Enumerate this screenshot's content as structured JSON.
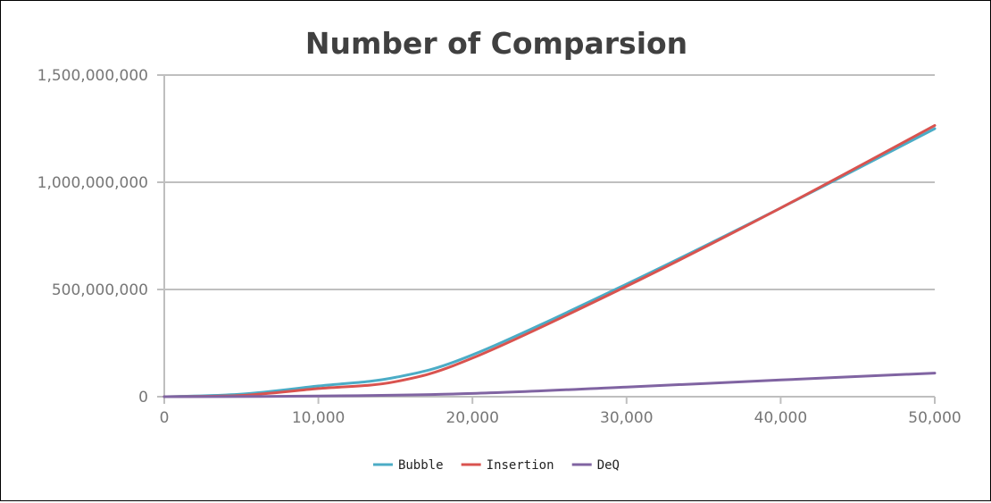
{
  "chart_data": {
    "type": "line",
    "title": "Number of Comparsion",
    "xlabel": "",
    "ylabel": "",
    "xlim": [
      0,
      50000
    ],
    "ylim": [
      0,
      1500000000
    ],
    "x_ticks": [
      0,
      10000,
      20000,
      30000,
      40000,
      50000
    ],
    "x_tick_labels": [
      "0",
      "10,000",
      "20,000",
      "30,000",
      "40,000",
      "50,000"
    ],
    "y_ticks": [
      0,
      500000000,
      1000000000,
      1500000000
    ],
    "y_tick_labels": [
      "0",
      "500,000,000",
      "1,000,000,000",
      "1,500,000,000"
    ],
    "grid": "horizontal",
    "legend": "bottom",
    "series": [
      {
        "name": "Bubble",
        "color": "#4bacc6",
        "x": [
          0,
          5000,
          10000,
          15000,
          20000,
          30000,
          40000,
          50000
        ],
        "y": [
          0,
          12000000,
          50000000,
          90000000,
          195000000,
          525000000,
          880000000,
          1250000000
        ]
      },
      {
        "name": "Insertion",
        "color": "#d9534f",
        "x": [
          0,
          5000,
          10000,
          15000,
          20000,
          30000,
          40000,
          50000
        ],
        "y": [
          0,
          6000000,
          38000000,
          70000000,
          180000000,
          515000000,
          880000000,
          1265000000
        ]
      },
      {
        "name": "DeQ",
        "color": "#8064a2",
        "x": [
          0,
          10000,
          20000,
          30000,
          40000,
          50000
        ],
        "y": [
          0,
          3000000,
          15000000,
          45000000,
          78000000,
          110000000
        ]
      }
    ]
  }
}
